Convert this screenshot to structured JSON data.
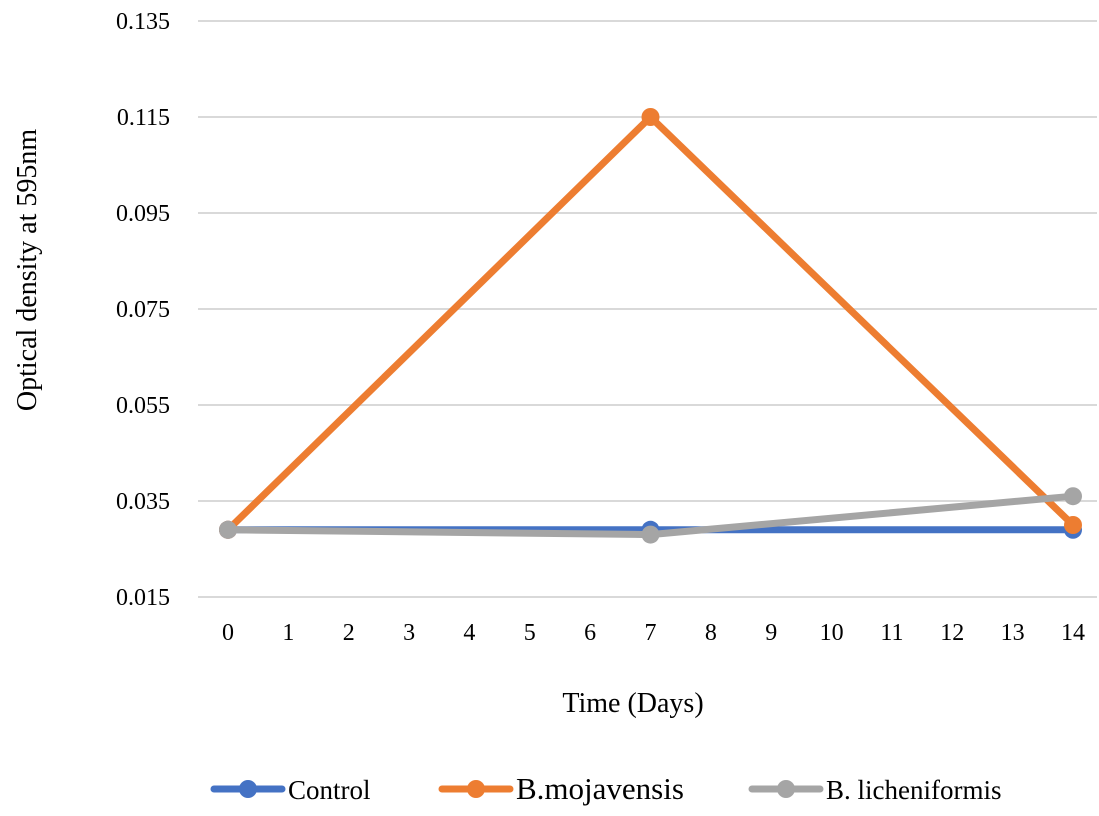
{
  "chart_data": {
    "type": "line",
    "title": "",
    "xlabel": "Time (Days)",
    "ylabel": "Optical density at 595nm",
    "x_ticks": [
      "0",
      "1",
      "2",
      "3",
      "4",
      "5",
      "6",
      "7",
      "8",
      "9",
      "10",
      "11",
      "12",
      "13",
      "14"
    ],
    "xlim": [
      0,
      14
    ],
    "y_ticks": [
      "0.015",
      "0.035",
      "0.055",
      "0.075",
      "0.095",
      "0.115",
      "0.135"
    ],
    "ylim": [
      0.015,
      0.135
    ],
    "grid": "horizontal",
    "legend_position": "bottom",
    "series": [
      {
        "name": "Control",
        "color": "#4472C4",
        "x": [
          0,
          7,
          14
        ],
        "y": [
          0.029,
          0.029,
          0.029
        ]
      },
      {
        "name": "B.mojavensis",
        "color": "#ED7D31",
        "x": [
          0,
          7,
          14
        ],
        "y": [
          0.029,
          0.115,
          0.03
        ]
      },
      {
        "name": "B. licheniformis",
        "color": "#A5A5A5",
        "x": [
          0,
          7,
          14
        ],
        "y": [
          0.029,
          0.028,
          0.036
        ]
      }
    ]
  }
}
